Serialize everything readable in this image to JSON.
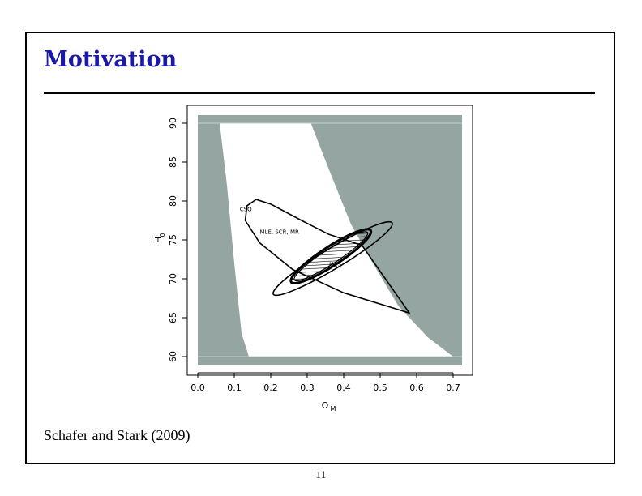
{
  "slide": {
    "title": "Motivation",
    "caption": "Schafer and Stark (2009)",
    "page_number": "11",
    "title_color": "#1a1aa6"
  },
  "chart_data": {
    "type": "scatter",
    "title": "",
    "xlabel": "Ω",
    "xlabel_sub": "M",
    "ylabel": "H",
    "ylabel_sub": "0",
    "xlim": [
      0.0,
      0.7
    ],
    "ylim": [
      60,
      90
    ],
    "x_ticks": [
      "0.0",
      "0.1",
      "0.2",
      "0.3",
      "0.4",
      "0.5",
      "0.6",
      "0.7"
    ],
    "y_ticks": [
      "60",
      "65",
      "70",
      "75",
      "80",
      "85",
      "90"
    ],
    "grid": false,
    "colors": {
      "excluded_region": "#95a5a2",
      "allowed_region": "#ffffff"
    },
    "annotations": [
      {
        "text": "CSQ",
        "x": 0.115,
        "y": 78.7
      },
      {
        "text": "MLE, SCR, MR",
        "x": 0.17,
        "y": 75.8
      },
      {
        "text": "MES",
        "x": 0.36,
        "y": 71.6
      }
    ],
    "regions": {
      "allowed_band": {
        "left_boundary": [
          [
            0.06,
            90
          ],
          [
            0.08,
            82
          ],
          [
            0.1,
            72
          ],
          [
            0.12,
            63
          ],
          [
            0.14,
            60
          ]
        ],
        "right_boundary": [
          [
            0.31,
            90
          ],
          [
            0.36,
            84
          ],
          [
            0.42,
            77
          ],
          [
            0.48,
            72
          ],
          [
            0.55,
            66.5
          ],
          [
            0.63,
            62.5
          ],
          [
            0.7,
            60
          ]
        ]
      }
    },
    "confidence_sets": [
      {
        "label": "CSQ",
        "outline": [
          [
            0.135,
            79.4
          ],
          [
            0.16,
            80.2
          ],
          [
            0.2,
            79.6
          ],
          [
            0.28,
            77.6
          ],
          [
            0.36,
            75.7
          ],
          [
            0.45,
            74.3
          ],
          [
            0.58,
            65.6
          ],
          [
            0.4,
            68.2
          ],
          [
            0.26,
            71.2
          ],
          [
            0.17,
            74.6
          ],
          [
            0.13,
            77.5
          ]
        ]
      },
      {
        "label": "MLE, SCR, MR",
        "center": [
          0.37,
          72.6
        ],
        "semi_major": 0.19,
        "semi_minor": 0.028,
        "angle": -31
      },
      {
        "label": "MES",
        "center": [
          0.365,
          72.9
        ],
        "semi_major": 0.13,
        "semi_minor": 0.026,
        "angle": -33
      }
    ]
  }
}
